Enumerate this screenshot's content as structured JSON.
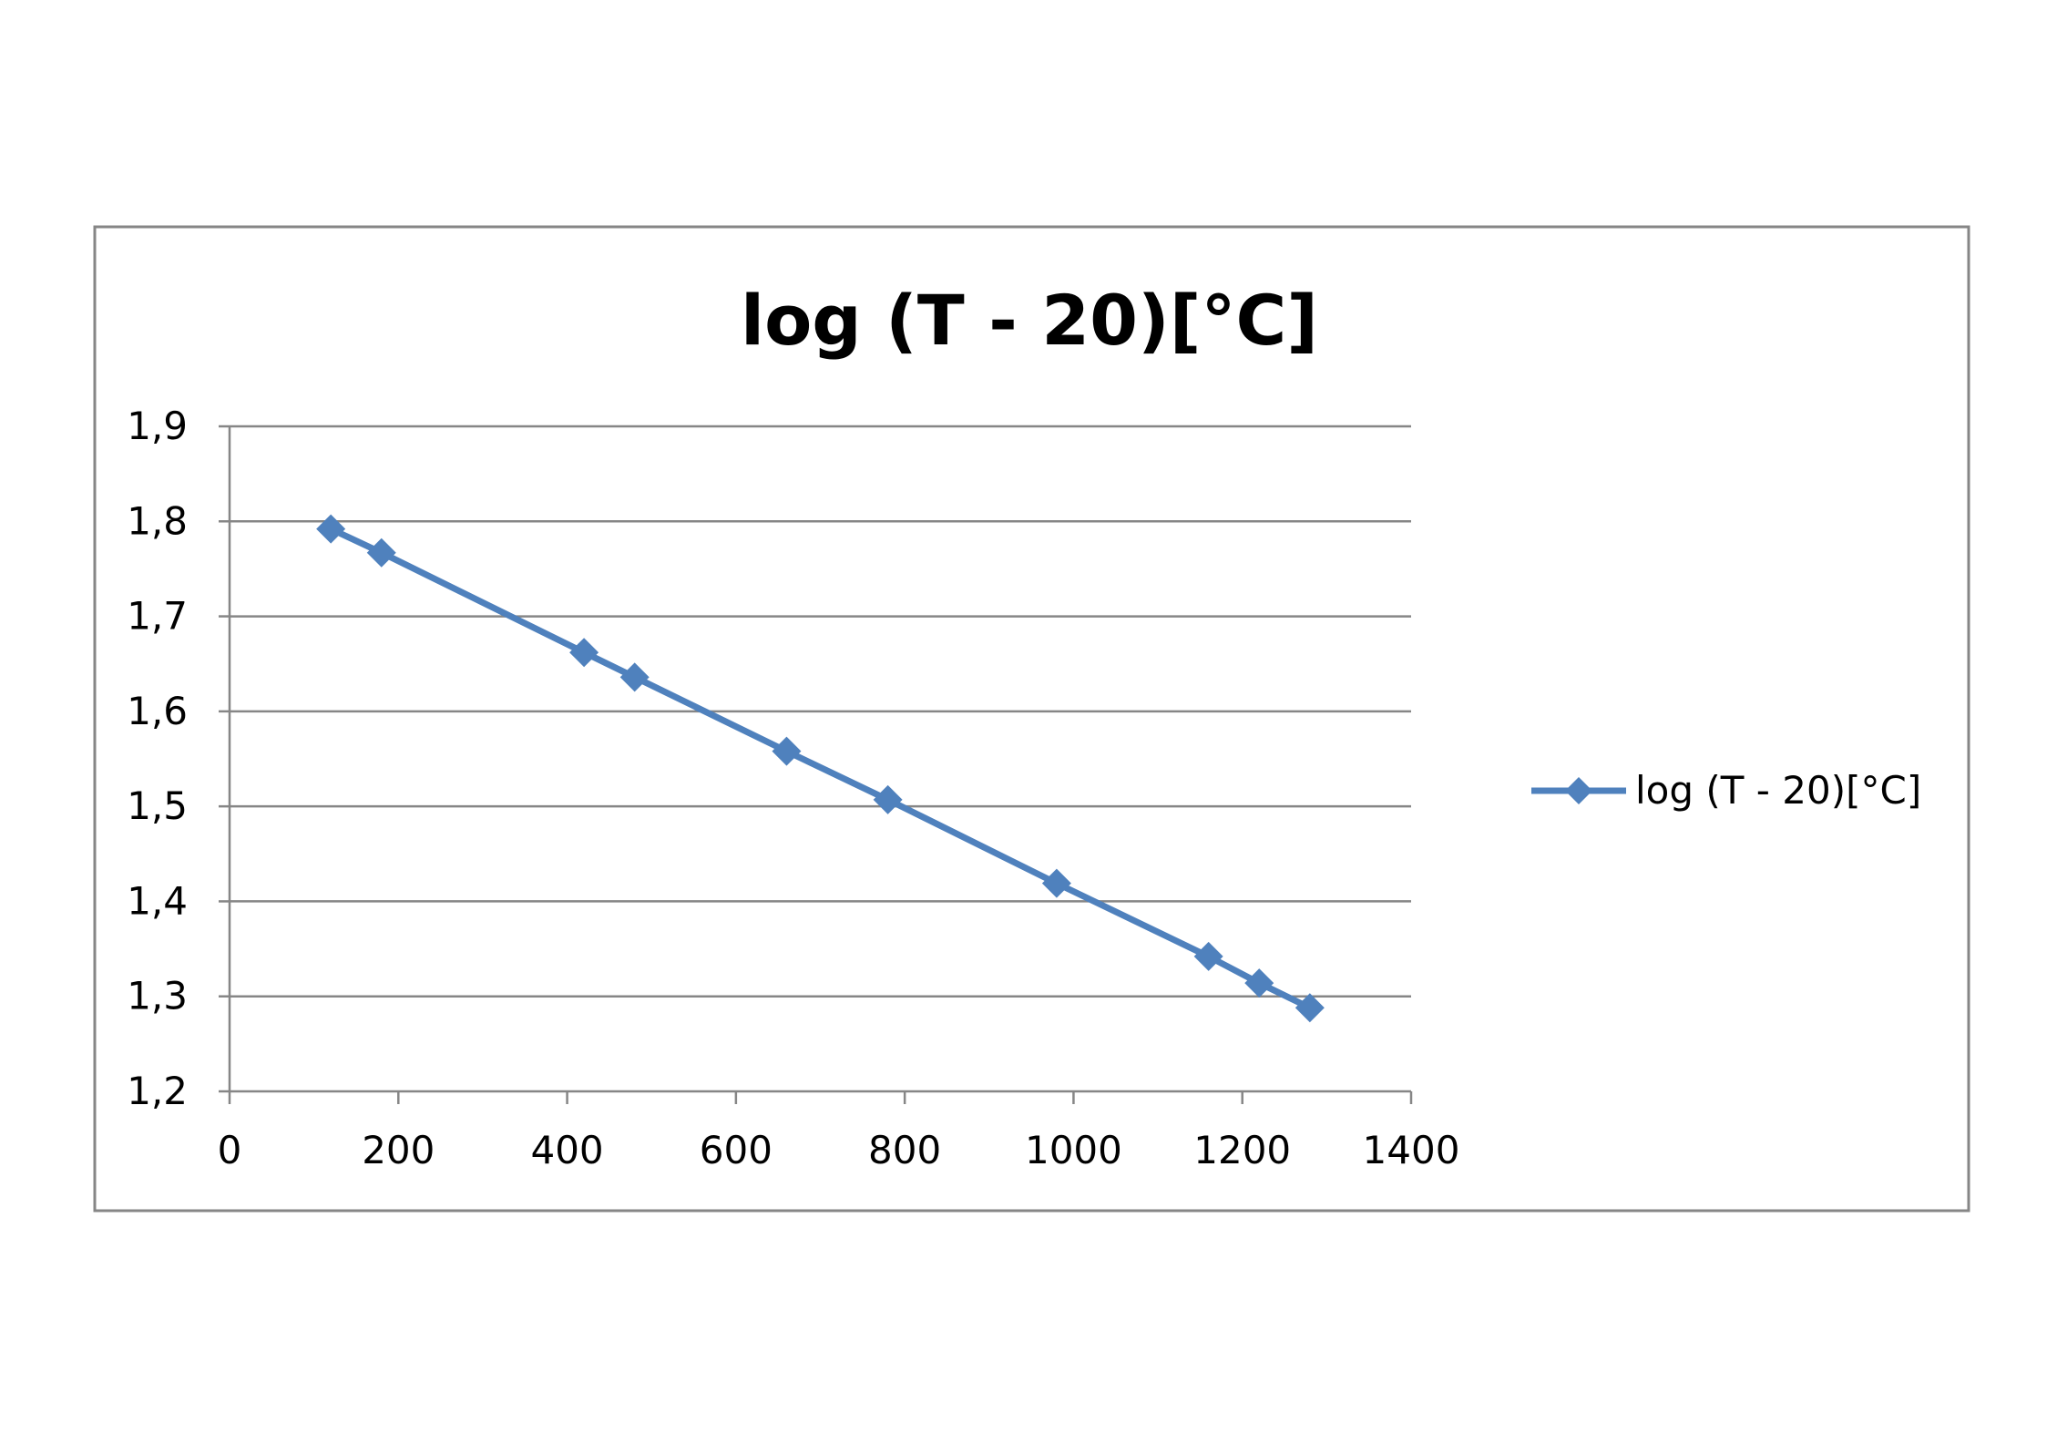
{
  "chart_data": {
    "type": "line",
    "title": "log (T  - 20)[°C]",
    "xlabel": "",
    "ylabel": "",
    "xlim": [
      0,
      1400
    ],
    "ylim": [
      1.2,
      1.9
    ],
    "x_ticks": [
      0,
      200,
      400,
      600,
      800,
      1000,
      1200,
      1400
    ],
    "x_tick_labels": [
      "0",
      "200",
      "400",
      "600",
      "800",
      "1000",
      "1200",
      "1400"
    ],
    "y_ticks": [
      1.2,
      1.3,
      1.4,
      1.5,
      1.6,
      1.7,
      1.8,
      1.9
    ],
    "y_tick_labels": [
      "1,2",
      "1,3",
      "1,4",
      "1,5",
      "1,6",
      "1,7",
      "1,8",
      "1,9"
    ],
    "grid": "horizontal",
    "legend_position": "right",
    "series": [
      {
        "name": "log (T  - 20)[°C]",
        "color": "#4f81bd",
        "marker": "diamond",
        "x": [
          120,
          180,
          420,
          480,
          660,
          780,
          980,
          1160,
          1220,
          1280
        ],
        "y": [
          1.792,
          1.767,
          1.662,
          1.636,
          1.558,
          1.507,
          1.419,
          1.342,
          1.314,
          1.288
        ]
      }
    ]
  }
}
